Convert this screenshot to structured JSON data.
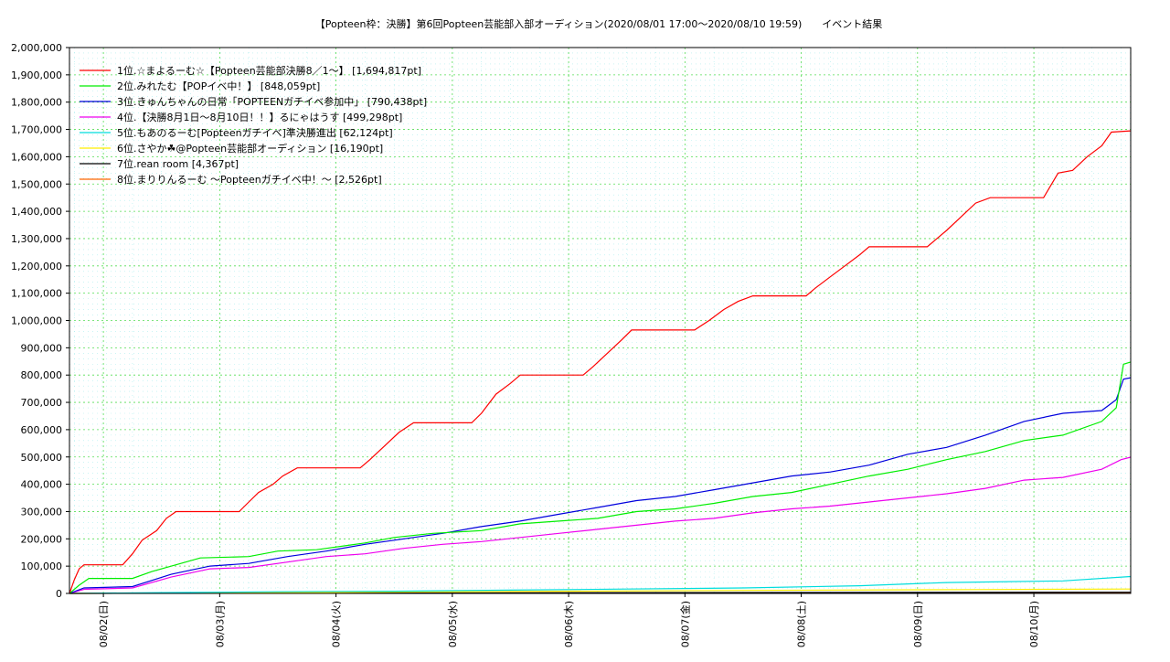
{
  "chart_data": {
    "type": "line",
    "title": "【Popteen枠：決勝】第6回Popteen芸能部入部オーディション(2020/08/01 17:00～2020/08/10 19:59)　　イベント結果",
    "xlabel": "",
    "ylabel": "",
    "x_range": [
      "2020-08-01 17:00",
      "2020-08-10 19:59"
    ],
    "x_ticks": [
      {
        "date": "2020-08-02",
        "label": "08/02(日)"
      },
      {
        "date": "2020-08-03",
        "label": "08/03(月)"
      },
      {
        "date": "2020-08-04",
        "label": "08/04(火)"
      },
      {
        "date": "2020-08-05",
        "label": "08/05(水)"
      },
      {
        "date": "2020-08-06",
        "label": "08/06(木)"
      },
      {
        "date": "2020-08-07",
        "label": "08/07(金)"
      },
      {
        "date": "2020-08-08",
        "label": "08/08(土)"
      },
      {
        "date": "2020-08-09",
        "label": "08/09(日)"
      },
      {
        "date": "2020-08-10",
        "label": "08/10(月)"
      }
    ],
    "ylim": [
      0,
      2000000
    ],
    "y_ticks": [
      {
        "value": 0,
        "label": "0"
      },
      {
        "value": 100000,
        "label": "100,000"
      },
      {
        "value": 200000,
        "label": "200,000"
      },
      {
        "value": 300000,
        "label": "300,000"
      },
      {
        "value": 400000,
        "label": "400,000"
      },
      {
        "value": 500000,
        "label": "500,000"
      },
      {
        "value": 600000,
        "label": "600,000"
      },
      {
        "value": 700000,
        "label": "700,000"
      },
      {
        "value": 800000,
        "label": "800,000"
      },
      {
        "value": 900000,
        "label": "900,000"
      },
      {
        "value": 1000000,
        "label": "1,000,000"
      },
      {
        "value": 1100000,
        "label": "1,100,000"
      },
      {
        "value": 1200000,
        "label": "1,200,000"
      },
      {
        "value": 1300000,
        "label": "1,300,000"
      },
      {
        "value": 1400000,
        "label": "1,400,000"
      },
      {
        "value": 1500000,
        "label": "1,500,000"
      },
      {
        "value": 1600000,
        "label": "1,600,000"
      },
      {
        "value": 1700000,
        "label": "1,700,000"
      },
      {
        "value": 1800000,
        "label": "1,800,000"
      },
      {
        "value": 1900000,
        "label": "1,900,000"
      },
      {
        "value": 2000000,
        "label": "2,000,000"
      }
    ],
    "grid": true,
    "legend_position": "top-left",
    "series": [
      {
        "name": "1位.☆まよるーむ☆【Popteen芸能部決勝8／1〜】 [1,694,817pt]",
        "color": "#ff0000",
        "points": [
          [
            "2020-08-01 17:00",
            0
          ],
          [
            "2020-08-01 18:00",
            50000
          ],
          [
            "2020-08-01 19:00",
            90000
          ],
          [
            "2020-08-01 20:00",
            105000
          ],
          [
            "2020-08-02 04:00",
            105000
          ],
          [
            "2020-08-02 06:00",
            145000
          ],
          [
            "2020-08-02 08:00",
            195000
          ],
          [
            "2020-08-02 11:00",
            230000
          ],
          [
            "2020-08-02 13:00",
            275000
          ],
          [
            "2020-08-02 15:00",
            300000
          ],
          [
            "2020-08-03 04:00",
            300000
          ],
          [
            "2020-08-03 06:00",
            335000
          ],
          [
            "2020-08-03 08:00",
            370000
          ],
          [
            "2020-08-03 11:00",
            400000
          ],
          [
            "2020-08-03 13:00",
            430000
          ],
          [
            "2020-08-03 16:00",
            460000
          ],
          [
            "2020-08-04 05:00",
            460000
          ],
          [
            "2020-08-04 07:00",
            490000
          ],
          [
            "2020-08-04 10:00",
            540000
          ],
          [
            "2020-08-04 13:00",
            590000
          ],
          [
            "2020-08-04 16:00",
            625000
          ],
          [
            "2020-08-05 04:00",
            625000
          ],
          [
            "2020-08-05 06:00",
            660000
          ],
          [
            "2020-08-05 09:00",
            730000
          ],
          [
            "2020-08-05 12:00",
            770000
          ],
          [
            "2020-08-05 14:00",
            800000
          ],
          [
            "2020-08-06 03:00",
            800000
          ],
          [
            "2020-08-06 05:00",
            830000
          ],
          [
            "2020-08-06 08:00",
            880000
          ],
          [
            "2020-08-06 11:00",
            930000
          ],
          [
            "2020-08-06 13:00",
            965000
          ],
          [
            "2020-08-07 02:00",
            965000
          ],
          [
            "2020-08-07 05:00",
            1000000
          ],
          [
            "2020-08-07 08:00",
            1040000
          ],
          [
            "2020-08-07 11:00",
            1070000
          ],
          [
            "2020-08-07 14:00",
            1090000
          ],
          [
            "2020-08-08 01:00",
            1090000
          ],
          [
            "2020-08-08 03:00",
            1120000
          ],
          [
            "2020-08-08 06:00",
            1160000
          ],
          [
            "2020-08-08 09:00",
            1200000
          ],
          [
            "2020-08-08 12:00",
            1240000
          ],
          [
            "2020-08-08 14:00",
            1270000
          ],
          [
            "2020-08-09 02:00",
            1270000
          ],
          [
            "2020-08-09 04:00",
            1300000
          ],
          [
            "2020-08-09 06:00",
            1330000
          ],
          [
            "2020-08-09 09:00",
            1380000
          ],
          [
            "2020-08-09 12:00",
            1430000
          ],
          [
            "2020-08-09 15:00",
            1450000
          ],
          [
            "2020-08-10 02:00",
            1450000
          ],
          [
            "2020-08-10 03:00",
            1480000
          ],
          [
            "2020-08-10 05:00",
            1540000
          ],
          [
            "2020-08-10 08:00",
            1550000
          ],
          [
            "2020-08-10 11:00",
            1600000
          ],
          [
            "2020-08-10 14:00",
            1640000
          ],
          [
            "2020-08-10 16:00",
            1690000
          ],
          [
            "2020-08-10 19:59",
            1694817
          ]
        ]
      },
      {
        "name": "2位.みれたむ【POPイベ中！】 [848,059pt]",
        "color": "#00ee00",
        "points": [
          [
            "2020-08-01 17:00",
            0
          ],
          [
            "2020-08-01 19:00",
            30000
          ],
          [
            "2020-08-01 21:00",
            55000
          ],
          [
            "2020-08-02 06:00",
            55000
          ],
          [
            "2020-08-02 10:00",
            80000
          ],
          [
            "2020-08-02 16:00",
            110000
          ],
          [
            "2020-08-02 20:00",
            130000
          ],
          [
            "2020-08-03 06:00",
            135000
          ],
          [
            "2020-08-03 12:00",
            155000
          ],
          [
            "2020-08-03 20:00",
            160000
          ],
          [
            "2020-08-04 06:00",
            185000
          ],
          [
            "2020-08-04 12:00",
            205000
          ],
          [
            "2020-08-04 20:00",
            220000
          ],
          [
            "2020-08-05 06:00",
            230000
          ],
          [
            "2020-08-05 14:00",
            255000
          ],
          [
            "2020-08-05 22:00",
            265000
          ],
          [
            "2020-08-06 06:00",
            275000
          ],
          [
            "2020-08-06 14:00",
            300000
          ],
          [
            "2020-08-06 22:00",
            310000
          ],
          [
            "2020-08-07 06:00",
            330000
          ],
          [
            "2020-08-07 14:00",
            355000
          ],
          [
            "2020-08-07 22:00",
            370000
          ],
          [
            "2020-08-08 06:00",
            400000
          ],
          [
            "2020-08-08 14:00",
            430000
          ],
          [
            "2020-08-08 22:00",
            455000
          ],
          [
            "2020-08-09 06:00",
            490000
          ],
          [
            "2020-08-09 14:00",
            520000
          ],
          [
            "2020-08-09 22:00",
            560000
          ],
          [
            "2020-08-10 06:00",
            580000
          ],
          [
            "2020-08-10 14:00",
            630000
          ],
          [
            "2020-08-10 17:00",
            680000
          ],
          [
            "2020-08-10 18:30",
            840000
          ],
          [
            "2020-08-10 19:59",
            848059
          ]
        ]
      },
      {
        "name": "3位.きゅんちゃんの日常「POPTEENガチイベ参加中」 [790,438pt]",
        "color": "#0000dd",
        "points": [
          [
            "2020-08-01 17:00",
            0
          ],
          [
            "2020-08-01 20:00",
            20000
          ],
          [
            "2020-08-02 06:00",
            25000
          ],
          [
            "2020-08-02 14:00",
            70000
          ],
          [
            "2020-08-02 22:00",
            100000
          ],
          [
            "2020-08-03 06:00",
            110000
          ],
          [
            "2020-08-03 14:00",
            135000
          ],
          [
            "2020-08-03 22:00",
            155000
          ],
          [
            "2020-08-04 06:00",
            180000
          ],
          [
            "2020-08-04 14:00",
            200000
          ],
          [
            "2020-08-04 22:00",
            220000
          ],
          [
            "2020-08-05 06:00",
            245000
          ],
          [
            "2020-08-05 14:00",
            265000
          ],
          [
            "2020-08-05 22:00",
            290000
          ],
          [
            "2020-08-06 06:00",
            315000
          ],
          [
            "2020-08-06 14:00",
            340000
          ],
          [
            "2020-08-06 22:00",
            355000
          ],
          [
            "2020-08-07 06:00",
            380000
          ],
          [
            "2020-08-07 14:00",
            405000
          ],
          [
            "2020-08-07 22:00",
            430000
          ],
          [
            "2020-08-08 06:00",
            445000
          ],
          [
            "2020-08-08 14:00",
            470000
          ],
          [
            "2020-08-08 22:00",
            510000
          ],
          [
            "2020-08-09 06:00",
            535000
          ],
          [
            "2020-08-09 14:00",
            580000
          ],
          [
            "2020-08-09 22:00",
            630000
          ],
          [
            "2020-08-10 06:00",
            660000
          ],
          [
            "2020-08-10 14:00",
            670000
          ],
          [
            "2020-08-10 17:00",
            710000
          ],
          [
            "2020-08-10 18:30",
            785000
          ],
          [
            "2020-08-10 19:59",
            790438
          ]
        ]
      },
      {
        "name": "4位.【決勝8月1日〜8月10日！！】るにゃはうす [499,298pt]",
        "color": "#ee00ee",
        "points": [
          [
            "2020-08-01 17:00",
            0
          ],
          [
            "2020-08-01 20:00",
            15000
          ],
          [
            "2020-08-02 06:00",
            20000
          ],
          [
            "2020-08-02 14:00",
            60000
          ],
          [
            "2020-08-02 22:00",
            90000
          ],
          [
            "2020-08-03 06:00",
            95000
          ],
          [
            "2020-08-03 14:00",
            115000
          ],
          [
            "2020-08-03 22:00",
            135000
          ],
          [
            "2020-08-04 06:00",
            145000
          ],
          [
            "2020-08-04 14:00",
            165000
          ],
          [
            "2020-08-04 22:00",
            180000
          ],
          [
            "2020-08-05 06:00",
            190000
          ],
          [
            "2020-08-05 14:00",
            205000
          ],
          [
            "2020-08-05 22:00",
            220000
          ],
          [
            "2020-08-06 06:00",
            235000
          ],
          [
            "2020-08-06 14:00",
            250000
          ],
          [
            "2020-08-06 22:00",
            265000
          ],
          [
            "2020-08-07 06:00",
            275000
          ],
          [
            "2020-08-07 14:00",
            295000
          ],
          [
            "2020-08-07 22:00",
            310000
          ],
          [
            "2020-08-08 06:00",
            320000
          ],
          [
            "2020-08-08 14:00",
            335000
          ],
          [
            "2020-08-08 22:00",
            350000
          ],
          [
            "2020-08-09 06:00",
            365000
          ],
          [
            "2020-08-09 14:00",
            385000
          ],
          [
            "2020-08-09 22:00",
            415000
          ],
          [
            "2020-08-10 06:00",
            425000
          ],
          [
            "2020-08-10 14:00",
            455000
          ],
          [
            "2020-08-10 18:00",
            490000
          ],
          [
            "2020-08-10 19:59",
            499298
          ]
        ]
      },
      {
        "name": "5位.もあのるーむ[Popteenガチイベ]準決勝進出 [62,124pt]",
        "color": "#00dddd",
        "points": [
          [
            "2020-08-01 17:00",
            0
          ],
          [
            "2020-08-02 12:00",
            3000
          ],
          [
            "2020-08-03 12:00",
            6000
          ],
          [
            "2020-08-04 12:00",
            8000
          ],
          [
            "2020-08-05 12:00",
            12000
          ],
          [
            "2020-08-06 12:00",
            16000
          ],
          [
            "2020-08-07 12:00",
            20000
          ],
          [
            "2020-08-08 12:00",
            28000
          ],
          [
            "2020-08-09 06:00",
            40000
          ],
          [
            "2020-08-10 06:00",
            46000
          ],
          [
            "2020-08-10 19:59",
            62124
          ]
        ]
      },
      {
        "name": "6位.さやか☘@Popteen芸能部オーディション [16,190pt]",
        "color": "#ffee00",
        "points": [
          [
            "2020-08-01 17:00",
            0
          ],
          [
            "2020-08-03 12:00",
            3000
          ],
          [
            "2020-08-05 12:00",
            7000
          ],
          [
            "2020-08-07 12:00",
            11000
          ],
          [
            "2020-08-09 12:00",
            14000
          ],
          [
            "2020-08-10 19:59",
            16190
          ]
        ]
      },
      {
        "name": "7位.rean room [4,367pt]",
        "color": "#000000",
        "points": [
          [
            "2020-08-01 17:00",
            0
          ],
          [
            "2020-08-04 00:00",
            1500
          ],
          [
            "2020-08-07 00:00",
            3000
          ],
          [
            "2020-08-10 19:59",
            4367
          ]
        ]
      },
      {
        "name": "8位.まりりんるーむ 〜Popteenガチイベ中！〜 [2,526pt]",
        "color": "#ff6600",
        "points": [
          [
            "2020-08-01 17:00",
            0
          ],
          [
            "2020-08-05 00:00",
            1200
          ],
          [
            "2020-08-10 19:59",
            2526
          ]
        ]
      }
    ]
  }
}
